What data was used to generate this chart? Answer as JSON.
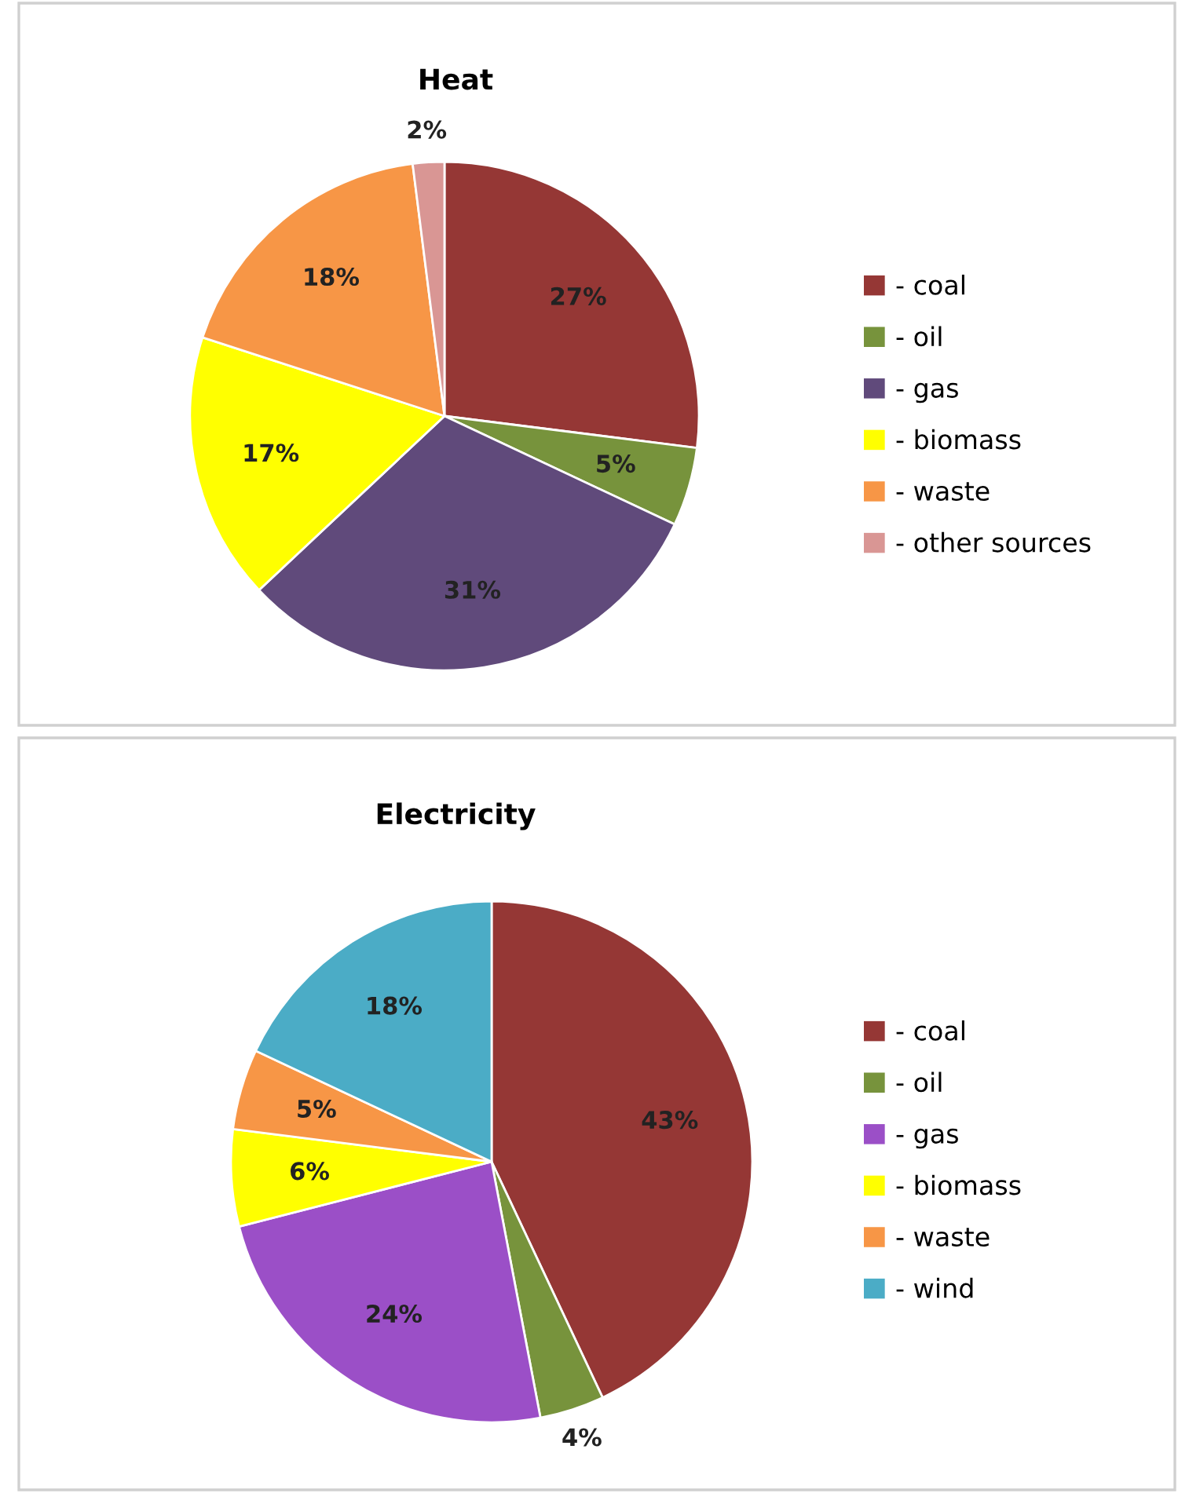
{
  "chart_data": [
    {
      "type": "pie",
      "title": "Heat",
      "categories": [
        "- coal",
        "- oil",
        "- gas",
        "- biomass",
        "- waste",
        "- other sources"
      ],
      "values": [
        27,
        5,
        31,
        17,
        18,
        2
      ],
      "colors": [
        "#953735",
        "#77933c",
        "#604a7b",
        "#ffff00",
        "#f79646",
        "#d99694"
      ],
      "value_labels": [
        "27%",
        "5%",
        "31%",
        "17%",
        "18%",
        "2%"
      ],
      "legend": "right"
    },
    {
      "type": "pie",
      "title": "Electricity",
      "categories": [
        "- coal",
        "- oil",
        "- gas",
        "- biomass",
        "- waste",
        "- wind"
      ],
      "values": [
        43,
        4,
        24,
        6,
        5,
        18
      ],
      "colors": [
        "#953735",
        "#77933c",
        "#9b4fc7",
        "#ffff00",
        "#f79646",
        "#4bacc6"
      ],
      "value_labels": [
        "43%",
        "4%",
        "24%",
        "6%",
        "5%",
        "18%"
      ],
      "legend": "right"
    }
  ]
}
